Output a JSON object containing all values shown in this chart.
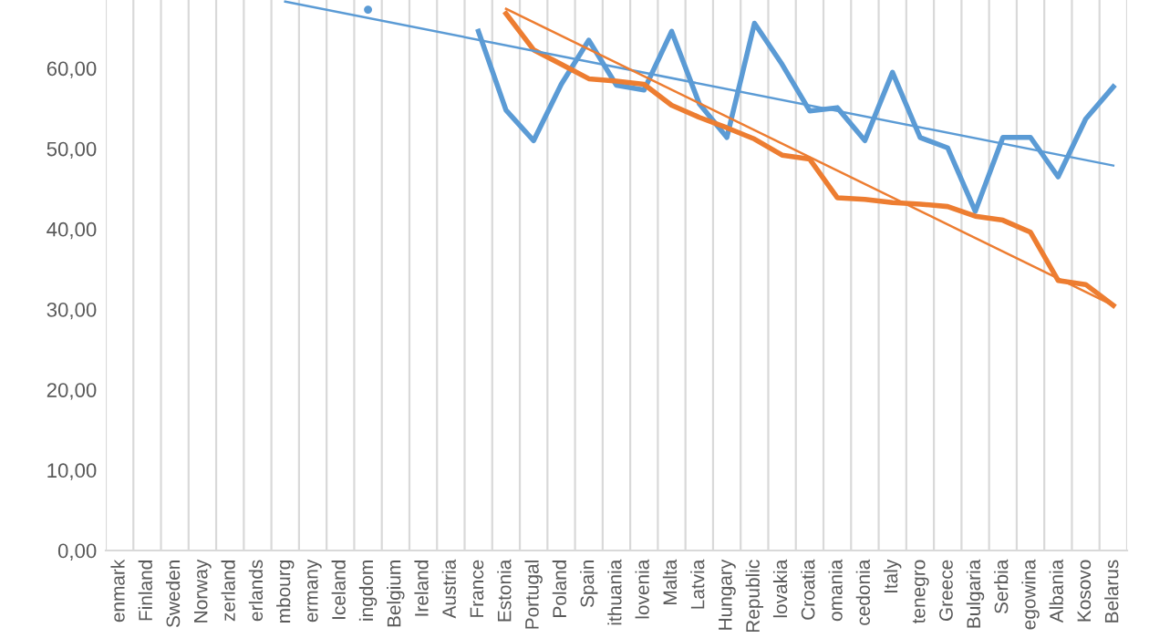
{
  "chart_data": {
    "type": "line",
    "categories": [
      "enmark",
      "Finland",
      "Sweden",
      "Norway",
      "zerland",
      "erlands",
      "mbourg",
      "ermany",
      "Iceland",
      "ingdom",
      "Belgium",
      "Ireland",
      "Austria",
      "France",
      "Estonia",
      "Portugal",
      "Poland",
      "Spain",
      "ithuania",
      "lovenia",
      "Malta",
      "Latvia",
      "Hungary",
      "Republic",
      "lovakia",
      "Croatia",
      "omania",
      "cedonia",
      "Italy",
      "tenegro",
      "Greece",
      "Bulgaria",
      "Serbia",
      "egowina",
      "Albania",
      "Kosovo",
      "Belarus"
    ],
    "series": [
      {
        "color": "#5b9bd5",
        "values": [
          null,
          null,
          null,
          null,
          null,
          null,
          null,
          null,
          null,
          67.3,
          null,
          null,
          null,
          64.6,
          54.8,
          51.0,
          58.0,
          63.5,
          57.9,
          57.3,
          64.6,
          55.6,
          51.4,
          65.6,
          60.5,
          54.7,
          55.1,
          51.0,
          59.5,
          51.4,
          50.1,
          42.2,
          51.4,
          51.4,
          46.5,
          53.7,
          57.7
        ]
      },
      {
        "color": "#ed7d31",
        "values": [
          null,
          null,
          null,
          null,
          null,
          null,
          null,
          null,
          null,
          null,
          null,
          null,
          null,
          null,
          66.8,
          62.3,
          60.5,
          58.7,
          58.4,
          58.0,
          55.4,
          53.9,
          52.6,
          51.2,
          49.2,
          48.7,
          43.9,
          43.7,
          43.3,
          43.1,
          42.8,
          41.6,
          41.1,
          39.6,
          33.6,
          33.1,
          30.5
        ]
      },
      {
        "type": "line",
        "color": "#5b9bd5",
        "x": [
          "mbourg",
          "Belarus"
        ],
        "values": [
          68.3,
          47.9
        ]
      },
      {
        "type": "line",
        "color": "#ed7d31",
        "x": [
          "Estonia",
          "Belarus"
        ],
        "values": [
          67.4,
          30.5
        ]
      }
    ],
    "ylim": [
      0,
      68.5
    ],
    "yticks": [
      {
        "value": 0,
        "label": "0,00"
      },
      {
        "value": 10,
        "label": "10,00"
      },
      {
        "value": 20,
        "label": "20,00"
      },
      {
        "value": 30,
        "label": "30,00"
      },
      {
        "value": 40,
        "label": "40,00"
      },
      {
        "value": 50,
        "label": "50,00"
      },
      {
        "value": 60,
        "label": "60,00"
      }
    ],
    "grid": "x",
    "legend": false
  }
}
